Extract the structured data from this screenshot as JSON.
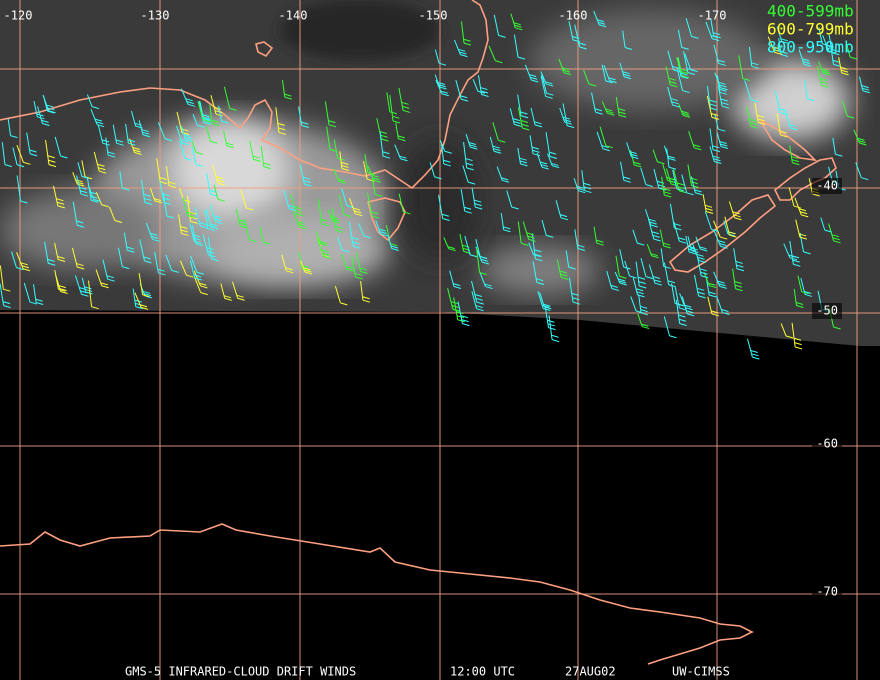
{
  "map": {
    "longitude_labels": [
      "-120",
      "-130",
      "-140",
      "-150",
      "-160",
      "-170"
    ],
    "latitude_labels": [
      "-40",
      "-50",
      "-60",
      "-70"
    ],
    "legend": [
      {
        "label": "400-599mb",
        "color": "#33ff33"
      },
      {
        "label": "600-799mb",
        "color": "#ffff33"
      },
      {
        "label": "800-950mb",
        "color": "#33ffff"
      }
    ],
    "footer": [
      "GMS-5 INFRARED-CLOUD DRIFT WINDS",
      "12:00 UTC",
      "27AUG02",
      "UW-CIMSS"
    ]
  }
}
